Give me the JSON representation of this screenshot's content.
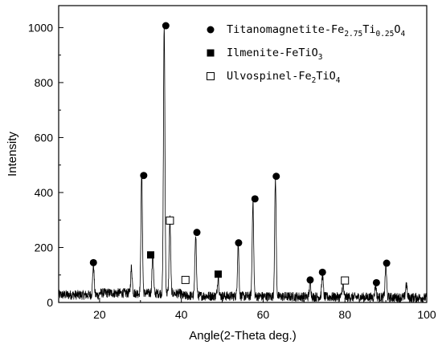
{
  "chart_data": {
    "type": "line",
    "title": "",
    "xlabel": "Angle(2-Theta deg.)",
    "ylabel": "Intensity",
    "xlim": [
      10,
      100
    ],
    "ylim": [
      0,
      1080
    ],
    "xticks": [
      20,
      40,
      60,
      80,
      100
    ],
    "yticks": [
      0,
      200,
      400,
      600,
      800,
      1000
    ],
    "grid": false,
    "legend_position": "top-right",
    "line_color": "#000000",
    "series": [
      {
        "peaks": [
          {
            "x": 18.5,
            "y": 110
          },
          {
            "x": 27.8,
            "y": 95
          },
          {
            "x": 30.3,
            "y": 435
          },
          {
            "x": 33.0,
            "y": 140
          },
          {
            "x": 35.8,
            "y": 975
          },
          {
            "x": 37.2,
            "y": 270
          },
          {
            "x": 43.5,
            "y": 230
          },
          {
            "x": 49.0,
            "y": 70
          },
          {
            "x": 53.9,
            "y": 190
          },
          {
            "x": 57.5,
            "y": 350
          },
          {
            "x": 63.0,
            "y": 430
          },
          {
            "x": 71.5,
            "y": 55
          },
          {
            "x": 74.5,
            "y": 80
          },
          {
            "x": 79.5,
            "y": 50
          },
          {
            "x": 87.5,
            "y": 45
          },
          {
            "x": 90.0,
            "y": 115
          },
          {
            "x": 95.0,
            "y": 50
          }
        ]
      }
    ],
    "markers": [
      {
        "phase": "titanomagnetite",
        "x": 18.5,
        "y": 145
      },
      {
        "phase": "titanomagnetite",
        "x": 30.8,
        "y": 462
      },
      {
        "phase": "titanomagnetite",
        "x": 36.2,
        "y": 1007
      },
      {
        "phase": "titanomagnetite",
        "x": 43.8,
        "y": 255
      },
      {
        "phase": "titanomagnetite",
        "x": 54.0,
        "y": 217
      },
      {
        "phase": "titanomagnetite",
        "x": 58.0,
        "y": 377
      },
      {
        "phase": "titanomagnetite",
        "x": 63.2,
        "y": 459
      },
      {
        "phase": "titanomagnetite",
        "x": 71.5,
        "y": 82
      },
      {
        "phase": "titanomagnetite",
        "x": 74.5,
        "y": 110
      },
      {
        "phase": "titanomagnetite",
        "x": 87.7,
        "y": 72
      },
      {
        "phase": "titanomagnetite",
        "x": 90.2,
        "y": 143
      },
      {
        "phase": "ilmenite",
        "x": 32.5,
        "y": 173
      },
      {
        "phase": "ilmenite",
        "x": 49.0,
        "y": 103
      },
      {
        "phase": "ulvospinel",
        "x": 37.2,
        "y": 298
      },
      {
        "phase": "ulvospinel",
        "x": 41.0,
        "y": 82
      },
      {
        "phase": "ulvospinel",
        "x": 80.0,
        "y": 80
      }
    ],
    "legend": [
      {
        "phase": "titanomagnetite",
        "marker": "filled-circle",
        "text": "Titanomagnetite-Fe",
        "sub1": "2.75",
        "mid": "Ti",
        "sub2": "0.25",
        "end": "O",
        "sub3": "4"
      },
      {
        "phase": "ilmenite",
        "marker": "filled-square",
        "text": "Ilmenite-FeTiO",
        "sub1": "3",
        "mid": "",
        "sub2": "",
        "end": "",
        "sub3": ""
      },
      {
        "phase": "ulvospinel",
        "marker": "open-square",
        "text": "Ulvospinel-Fe",
        "sub1": "2",
        "mid": "TiO",
        "sub2": "4",
        "end": "",
        "sub3": ""
      }
    ]
  }
}
